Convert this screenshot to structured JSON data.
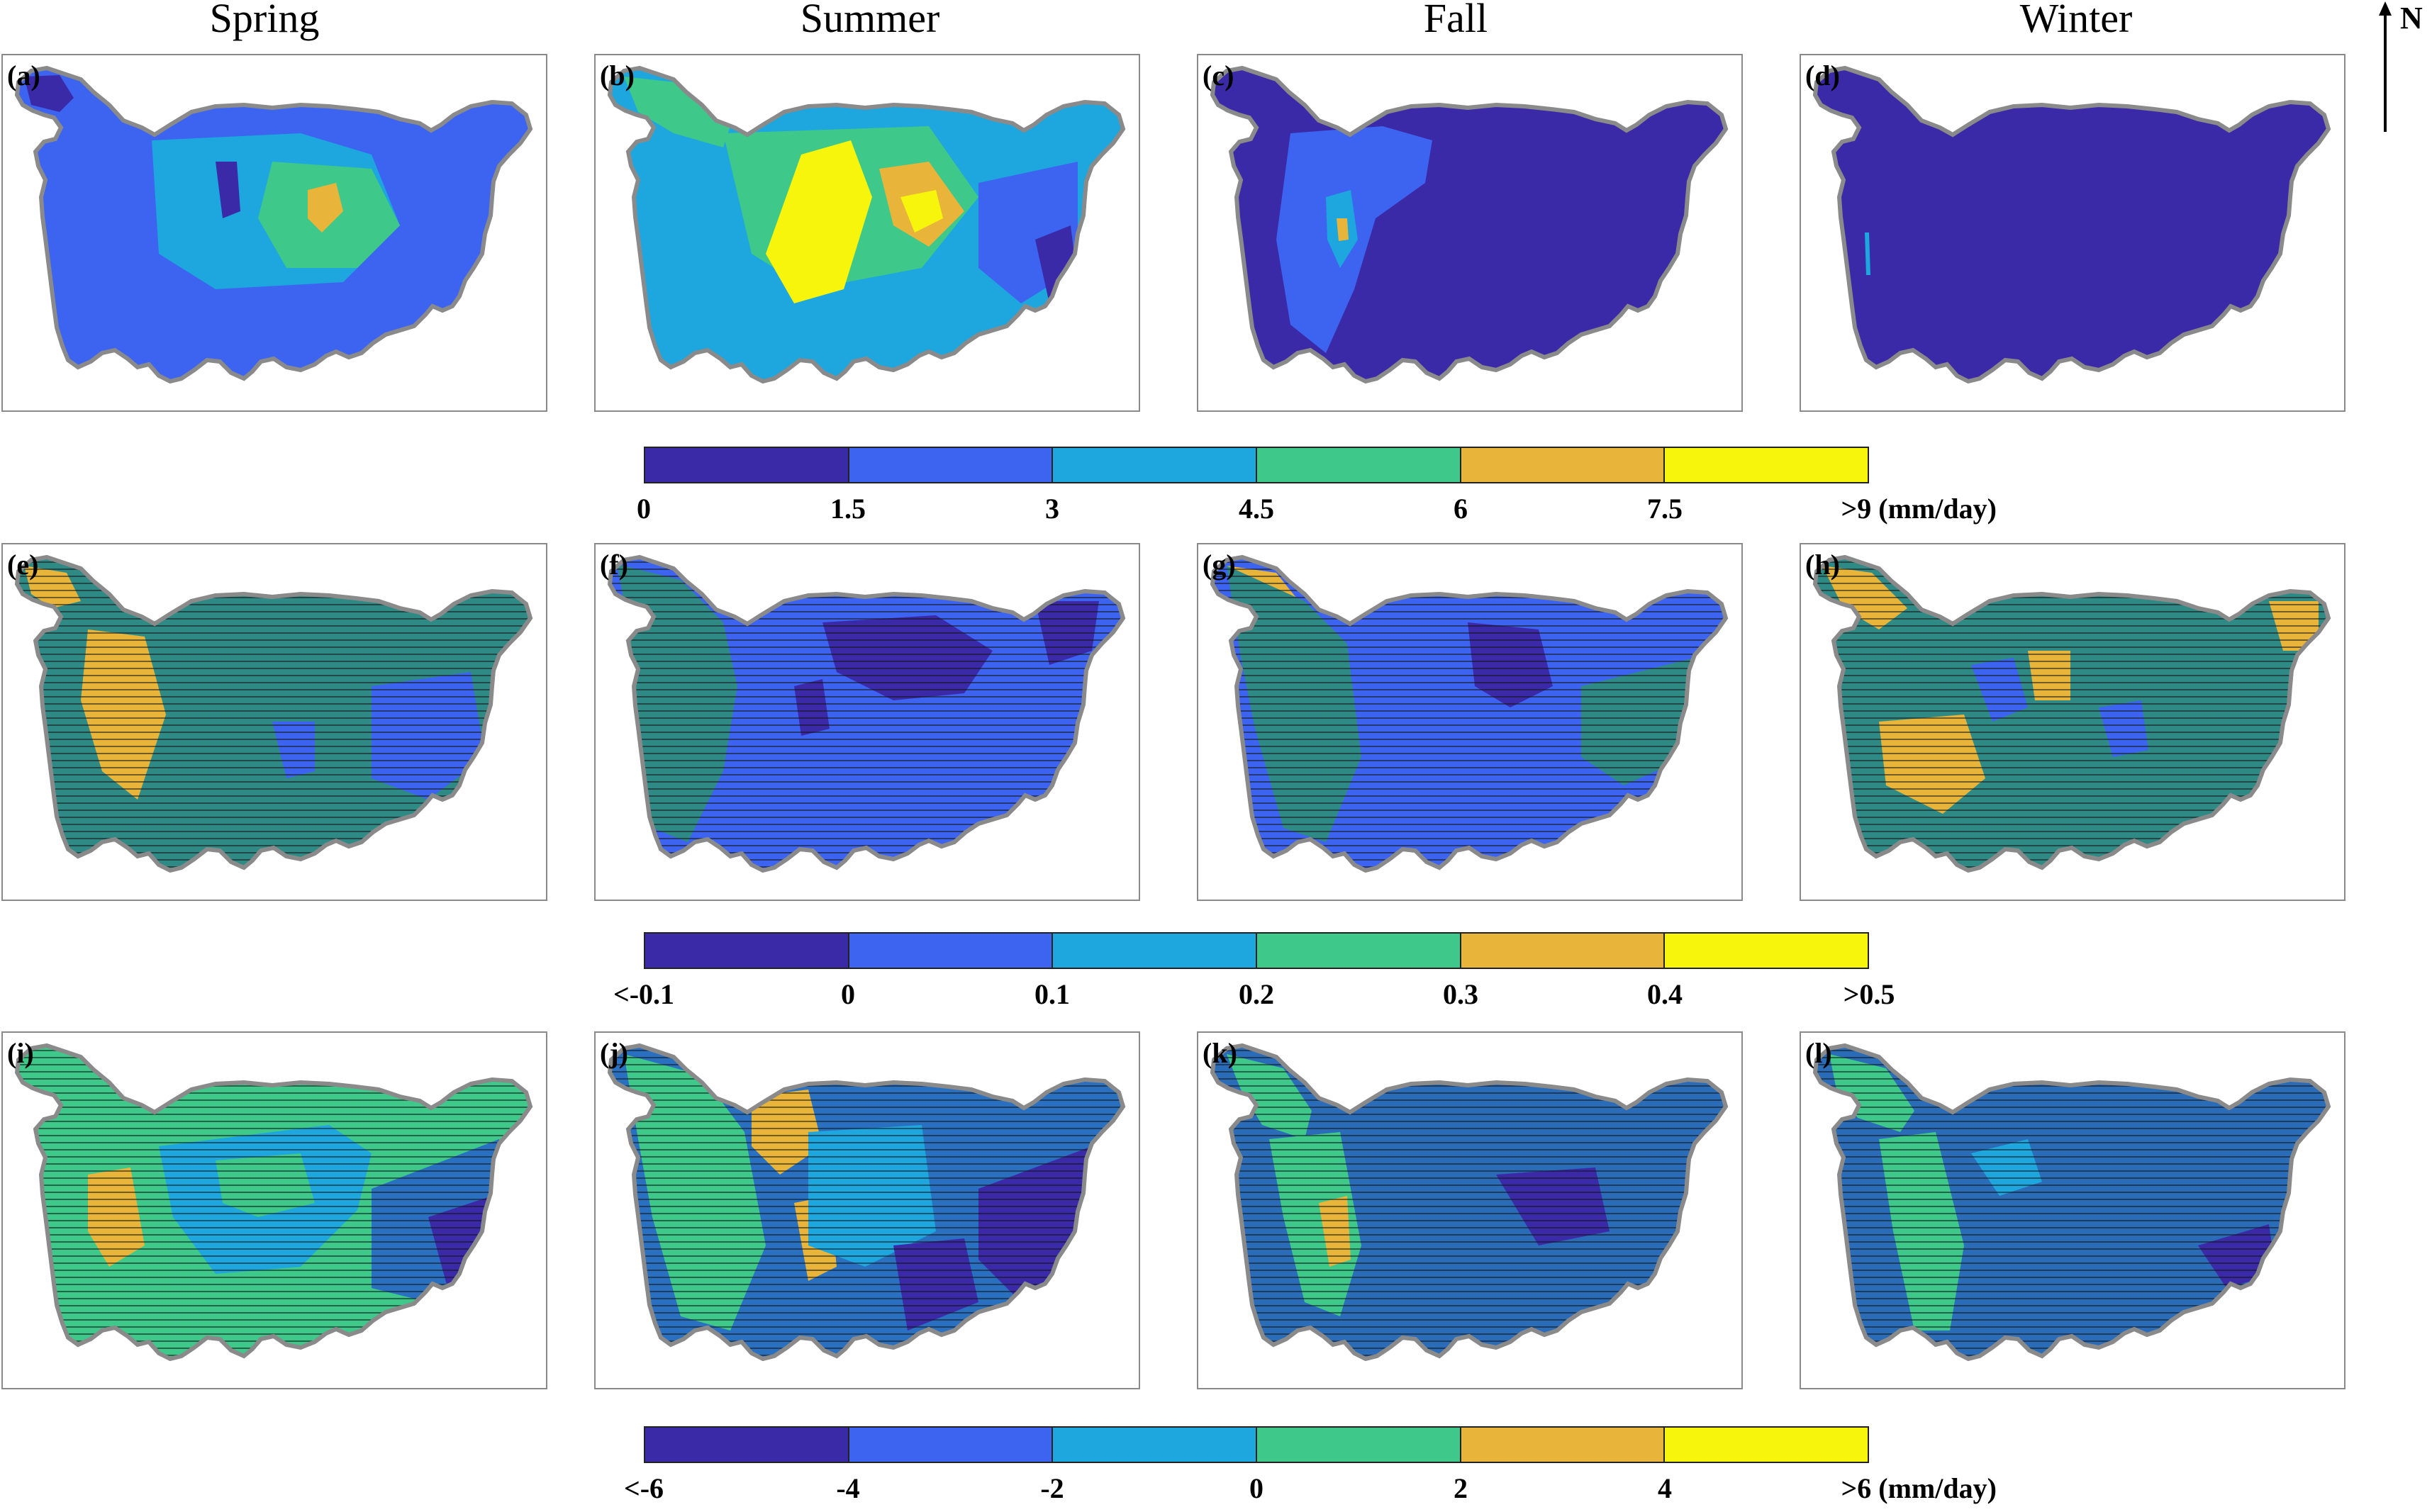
{
  "seasons": [
    "Spring",
    "Summer",
    "Fall",
    "Winter"
  ],
  "north_label": "N",
  "palette": [
    "#3b2aa8",
    "#3d64f0",
    "#1ea6de",
    "#3ec88a",
    "#e8b43a",
    "#f8f50c"
  ],
  "rows": [
    {
      "panels": [
        {
          "label": "(a)",
          "base": "#3d64f0"
        },
        {
          "label": "(b)",
          "base": "#1ea6de"
        },
        {
          "label": "(c)",
          "base": "#3b2aa8"
        },
        {
          "label": "(d)",
          "base": "#3b2aa8"
        }
      ],
      "colorbar_ticks": [
        "0",
        "1.5",
        "3",
        "4.5",
        "6",
        "7.5",
        ">9 (mm/day)"
      ]
    },
    {
      "panels": [
        {
          "label": "(e)",
          "base": "#2f8a86"
        },
        {
          "label": "(f)",
          "base": "#3d64f0"
        },
        {
          "label": "(g)",
          "base": "#3d64f0"
        },
        {
          "label": "(h)",
          "base": "#2f8a86"
        }
      ],
      "colorbar_ticks": [
        "<-0.1",
        "0",
        "0.1",
        "0.2",
        "0.3",
        "0.4",
        ">0.5"
      ]
    },
    {
      "panels": [
        {
          "label": "(i)",
          "base": "#3ec88a"
        },
        {
          "label": "(j)",
          "base": "#2a70c0"
        },
        {
          "label": "(k)",
          "base": "#2a6cb8"
        },
        {
          "label": "(l)",
          "base": "#2a6cb8"
        }
      ],
      "colorbar_ticks": [
        "<-6",
        "-4",
        "-2",
        "0",
        "2",
        "4",
        ">6 (mm/day)"
      ]
    }
  ]
}
